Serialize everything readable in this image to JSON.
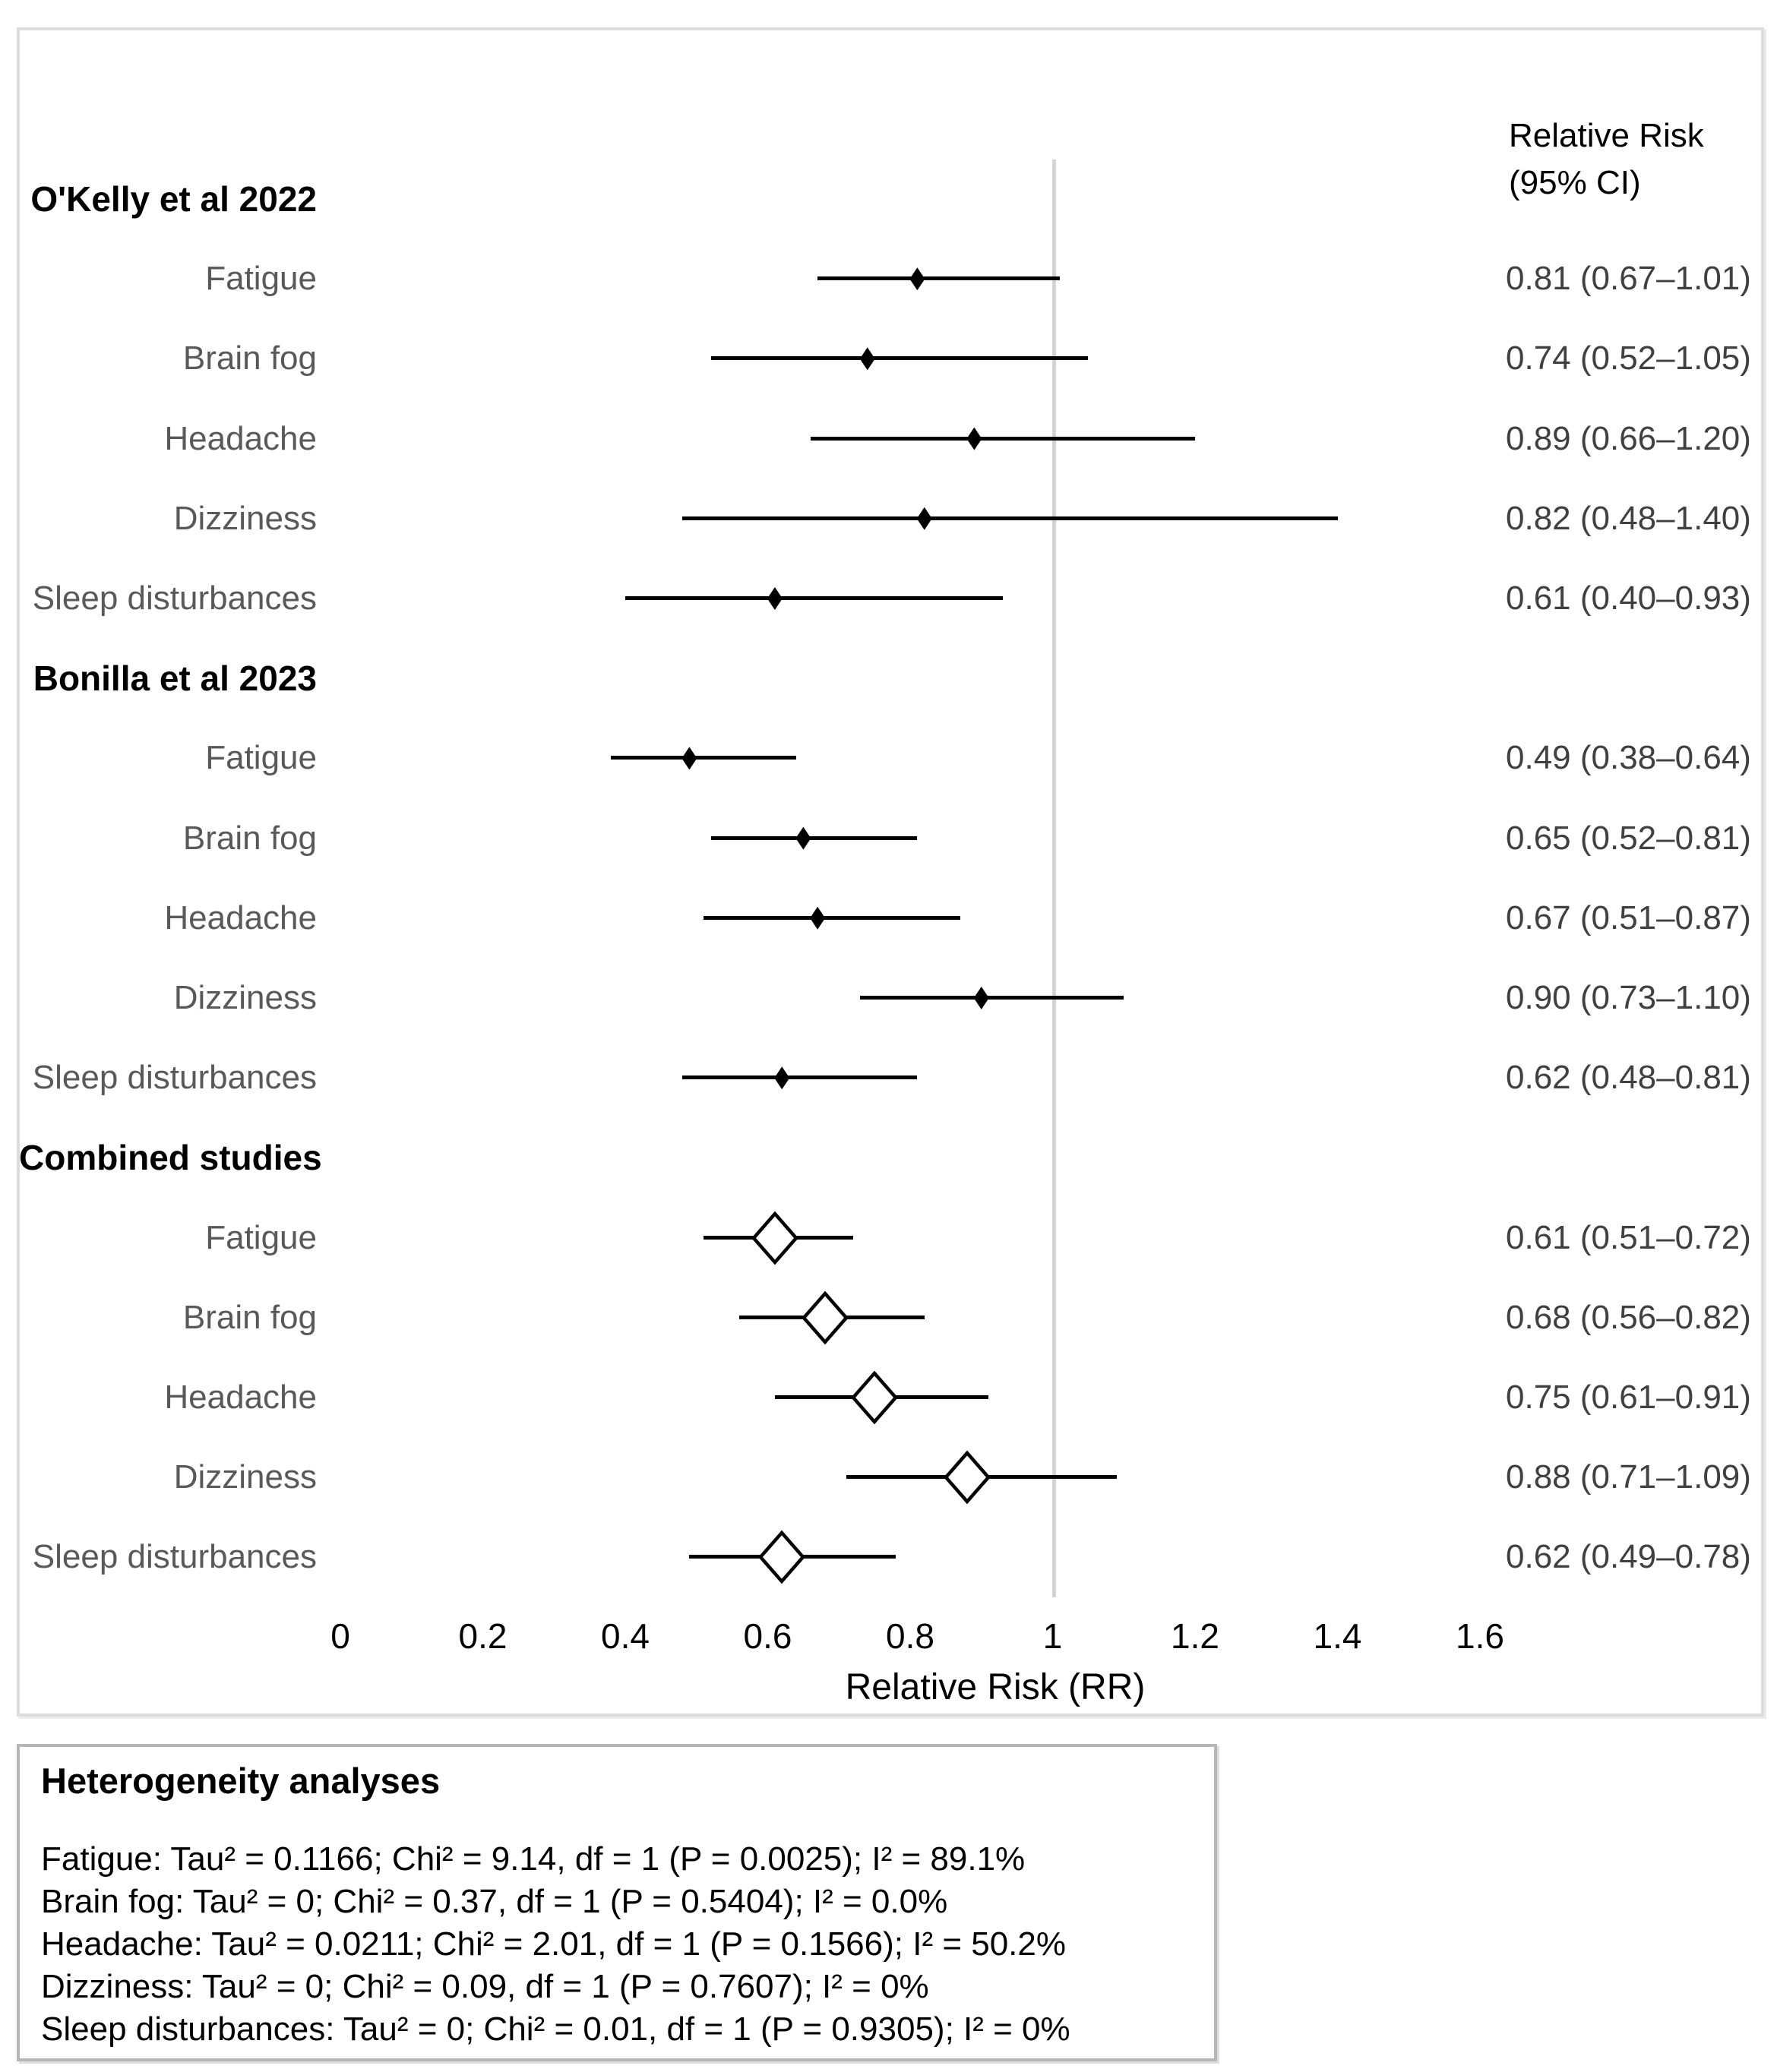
{
  "header": {
    "line1": "Relative Risk",
    "line2": "(95% CI)"
  },
  "chart_data": {
    "type": "forest",
    "xlabel": "Relative Risk (RR)",
    "x_ticks": [
      "0",
      "0.2",
      "0.4",
      "0.6",
      "0.8",
      "1",
      "1.2",
      "1.4",
      "1.6"
    ],
    "x_tick_values": [
      0,
      0.2,
      0.4,
      0.6,
      0.8,
      1,
      1.2,
      1.4,
      1.6
    ],
    "xlim": [
      0,
      1.6
    ],
    "reference_line": 1,
    "value_column_header": "Relative Risk (95% CI)",
    "grid": false,
    "groups": [
      {
        "title": "O'Kelly et al 2022",
        "summary": false,
        "rows": [
          {
            "label": "Fatigue",
            "rr": 0.81,
            "ci_low": 0.67,
            "ci_high": 1.01,
            "ci_text": "0.81 (0.67–1.01)"
          },
          {
            "label": "Brain fog",
            "rr": 0.74,
            "ci_low": 0.52,
            "ci_high": 1.05,
            "ci_text": "0.74 (0.52–1.05)"
          },
          {
            "label": "Headache",
            "rr": 0.89,
            "ci_low": 0.66,
            "ci_high": 1.2,
            "ci_text": "0.89 (0.66–1.20)"
          },
          {
            "label": "Dizziness",
            "rr": 0.82,
            "ci_low": 0.48,
            "ci_high": 1.4,
            "ci_text": "0.82 (0.48–1.40)"
          },
          {
            "label": "Sleep disturbances",
            "rr": 0.61,
            "ci_low": 0.4,
            "ci_high": 0.93,
            "ci_text": "0.61 (0.40–0.93)"
          }
        ]
      },
      {
        "title": "Bonilla et al 2023",
        "summary": false,
        "rows": [
          {
            "label": "Fatigue",
            "rr": 0.49,
            "ci_low": 0.38,
            "ci_high": 0.64,
            "ci_text": "0.49 (0.38–0.64)"
          },
          {
            "label": "Brain fog",
            "rr": 0.65,
            "ci_low": 0.52,
            "ci_high": 0.81,
            "ci_text": "0.65 (0.52–0.81)"
          },
          {
            "label": "Headache",
            "rr": 0.67,
            "ci_low": 0.51,
            "ci_high": 0.87,
            "ci_text": "0.67 (0.51–0.87)"
          },
          {
            "label": "Dizziness",
            "rr": 0.9,
            "ci_low": 0.73,
            "ci_high": 1.1,
            "ci_text": "0.90 (0.73–1.10)"
          },
          {
            "label": "Sleep disturbances",
            "rr": 0.62,
            "ci_low": 0.48,
            "ci_high": 0.81,
            "ci_text": "0.62 (0.48–0.81)"
          }
        ]
      },
      {
        "title": "Combined studies",
        "summary": true,
        "rows": [
          {
            "label": "Fatigue",
            "rr": 0.61,
            "ci_low": 0.51,
            "ci_high": 0.72,
            "ci_text": "0.61 (0.51–0.72)"
          },
          {
            "label": "Brain fog",
            "rr": 0.68,
            "ci_low": 0.56,
            "ci_high": 0.82,
            "ci_text": "0.68 (0.56–0.82)"
          },
          {
            "label": "Headache",
            "rr": 0.75,
            "ci_low": 0.61,
            "ci_high": 0.91,
            "ci_text": "0.75 (0.61–0.91)"
          },
          {
            "label": "Dizziness",
            "rr": 0.88,
            "ci_low": 0.71,
            "ci_high": 1.09,
            "ci_text": "0.88 (0.71–1.09)"
          },
          {
            "label": "Sleep disturbances",
            "rr": 0.62,
            "ci_low": 0.49,
            "ci_high": 0.78,
            "ci_text": "0.62 (0.49–0.78)"
          }
        ]
      }
    ]
  },
  "heterogeneity": {
    "title": "Heterogeneity analyses",
    "lines": [
      "Fatigue: Tau² = 0.1166; Chi² = 9.14, df = 1 (P = 0.0025); I² = 89.1%",
      "Brain fog: Tau² = 0; Chi² = 0.37, df = 1 (P = 0.5404); I² = 0.0%",
      "Headache: Tau² = 0.0211; Chi² = 2.01, df = 1 (P = 0.1566); I² = 50.2%",
      "Dizziness: Tau² = 0; Chi² = 0.09, df = 1 (P = 0.7607); I² = 0%",
      "Sleep disturbances: Tau² = 0; Chi² = 0.01, df = 1 (P = 0.9305); I² = 0%"
    ]
  },
  "colors": {
    "marker": "#000000",
    "summary_fill": "#ffffff",
    "reference_line": "#d4d4d4",
    "row_label": "#595959",
    "ci_value": "#404040",
    "chart_border": "#dcdcdc",
    "het_border": "#b6b6b6",
    "background": "#ffffff"
  }
}
